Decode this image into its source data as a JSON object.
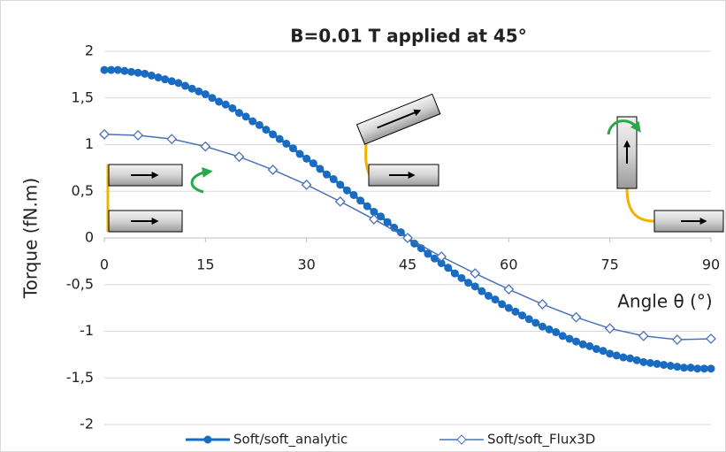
{
  "chart_data": {
    "type": "line",
    "title": "B=0.01 T applied at 45°",
    "y_label": "Torque (fN.m)",
    "x_label": "Angle θ (°)",
    "xlim": [
      0,
      90
    ],
    "xticks": [
      0,
      15,
      30,
      45,
      60,
      75,
      90
    ],
    "ylim": [
      -2,
      2
    ],
    "yticks": [
      -2,
      {
        "value": -1.5,
        "label": "-1,5"
      },
      -1,
      {
        "value": -0.5,
        "label": "-0,5"
      },
      0,
      {
        "value": 0.5,
        "label": "0,5"
      },
      1,
      {
        "value": 1.5,
        "label": "1,5"
      },
      2
    ],
    "grid": true,
    "legend": "bottom",
    "series": [
      {
        "name": "Soft/soft_analytic",
        "color": "#1a6cc2",
        "marker": "circle",
        "x": [
          0,
          1,
          2,
          3,
          4,
          5,
          6,
          7,
          8,
          9,
          10,
          11,
          12,
          13,
          14,
          15,
          16,
          17,
          18,
          19,
          20,
          21,
          22,
          23,
          24,
          25,
          26,
          27,
          28,
          29,
          30,
          31,
          32,
          33,
          34,
          35,
          36,
          37,
          38,
          39,
          40,
          41,
          42,
          43,
          44,
          45,
          46,
          47,
          48,
          49,
          50,
          51,
          52,
          53,
          54,
          55,
          56,
          57,
          58,
          59,
          60,
          61,
          62,
          63,
          64,
          65,
          66,
          67,
          68,
          69,
          70,
          71,
          72,
          73,
          74,
          75,
          76,
          77,
          78,
          79,
          80,
          81,
          82,
          83,
          84,
          85,
          86,
          87,
          88,
          89,
          90
        ],
        "values": [
          1.8,
          1.8,
          1.8,
          1.79,
          1.78,
          1.77,
          1.76,
          1.74,
          1.72,
          1.7,
          1.68,
          1.66,
          1.63,
          1.6,
          1.57,
          1.54,
          1.5,
          1.46,
          1.43,
          1.39,
          1.34,
          1.3,
          1.25,
          1.21,
          1.16,
          1.11,
          1.06,
          1.01,
          0.96,
          0.9,
          0.85,
          0.8,
          0.74,
          0.68,
          0.63,
          0.57,
          0.51,
          0.46,
          0.4,
          0.34,
          0.28,
          0.23,
          0.17,
          0.11,
          0.06,
          0,
          -0.06,
          -0.11,
          -0.17,
          -0.22,
          -0.27,
          -0.32,
          -0.38,
          -0.43,
          -0.48,
          -0.52,
          -0.57,
          -0.62,
          -0.66,
          -0.71,
          -0.75,
          -0.79,
          -0.83,
          -0.87,
          -0.91,
          -0.95,
          -0.98,
          -1.01,
          -1.05,
          -1.08,
          -1.11,
          -1.14,
          -1.16,
          -1.19,
          -1.21,
          -1.24,
          -1.26,
          -1.28,
          -1.29,
          -1.31,
          -1.33,
          -1.34,
          -1.35,
          -1.36,
          -1.37,
          -1.38,
          -1.39,
          -1.39,
          -1.4,
          -1.4,
          -1.4
        ]
      },
      {
        "name": "Soft/soft_Flux3D",
        "color": "#4a72b8",
        "marker": "diamond",
        "x": [
          0,
          5,
          10,
          15,
          20,
          25,
          30,
          35,
          40,
          45,
          50,
          55,
          60,
          65,
          70,
          75,
          80,
          85,
          90
        ],
        "values": [
          1.11,
          1.1,
          1.06,
          0.98,
          0.87,
          0.73,
          0.57,
          0.39,
          0.2,
          0,
          -0.2,
          -0.38,
          -0.55,
          -0.71,
          -0.85,
          -0.97,
          -1.05,
          -1.09,
          -1.08
        ]
      }
    ]
  }
}
